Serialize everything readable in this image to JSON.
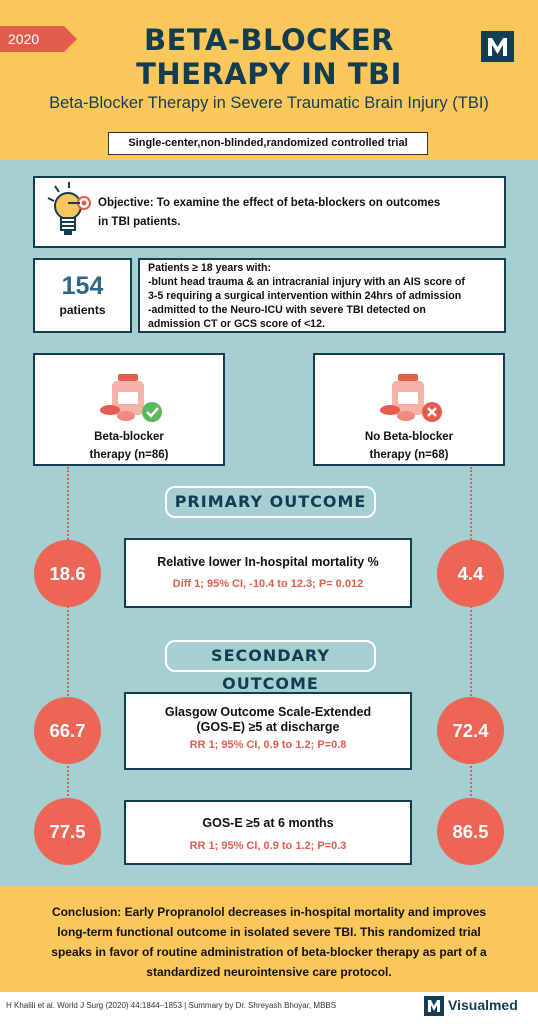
{
  "header": {
    "year": "2020",
    "title_line1": "BETA-BLOCKER",
    "title_line2": "THERAPY IN TBI",
    "logo_letter": "M",
    "subtitle": "Beta-Blocker Therapy in Severe Traumatic Brain Injury (TBI)",
    "study_design": "Single-center,non-blinded,randomized controlled trial"
  },
  "objective": {
    "icon": "lightbulb-target-icon",
    "line1": "Objective: To examine the effect of beta-blockers on outcomes",
    "line2": "in TBI patients."
  },
  "patients": {
    "count": "154",
    "label": "patients",
    "criteria": [
      "Patients ≥ 18 years with:",
      "-blunt head trauma & an intracranial injury with an AIS score of",
      "3-5 requiring a surgical intervention within 24hrs of admission",
      "-admitted to the Neuro-ICU with severe TBI detected on",
      "admission CT or GCS score of <12."
    ]
  },
  "arms": {
    "left": {
      "line1": "Beta-blocker",
      "line2": "therapy (n=86)",
      "icon": "medicine-check-icon"
    },
    "right": {
      "line1": "No Beta-blocker",
      "line2": "therapy (n=68)",
      "icon": "medicine-cross-icon"
    }
  },
  "primary": {
    "heading": "PRIMARY OUTCOME",
    "left_value": "18.6",
    "right_value": "4.4",
    "title": "Relative lower In-hospital mortality %",
    "stat": "Diff 1; 95% CI, -10.4 to 12.3; P= 0.012"
  },
  "secondary": {
    "heading": "SECONDARY OUTCOME",
    "outcome1": {
      "left_value": "66.7",
      "right_value": "72.4",
      "title_line1": "Glasgow Outcome Scale-Extended",
      "title_line2": "(GOS-E) ≥5 at discharge",
      "stat": "RR 1; 95% CI, 0.9 to 1.2; P=0.8"
    },
    "outcome2": {
      "left_value": "77.5",
      "right_value": "86.5",
      "title": "GOS-E ≥5 at 6 months",
      "stat": "RR 1; 95% CI, 0.9 to 1.2; P=0.3"
    }
  },
  "conclusion": {
    "lines": [
      "Conclusion: Early Propranolol decreases in-hospital mortality and improves",
      "long-term functional outcome in isolated severe TBI. This randomized trial",
      "speaks in favor of routine administration of beta-blocker therapy as part of a",
      "standardized neurointensive care protocol."
    ]
  },
  "footer": {
    "citation": "H Khalili et al. World J Surg (2020) 44:1844–1853 | Summary by Dr. Shreyash Bhoyar, MBBS",
    "brand_letter": "M",
    "brand": "Visualmed"
  },
  "colors": {
    "accent_yellow": "#fbc75b",
    "teal": "#a5cfd1",
    "navy": "#133d53",
    "coral": "#ec6555"
  }
}
